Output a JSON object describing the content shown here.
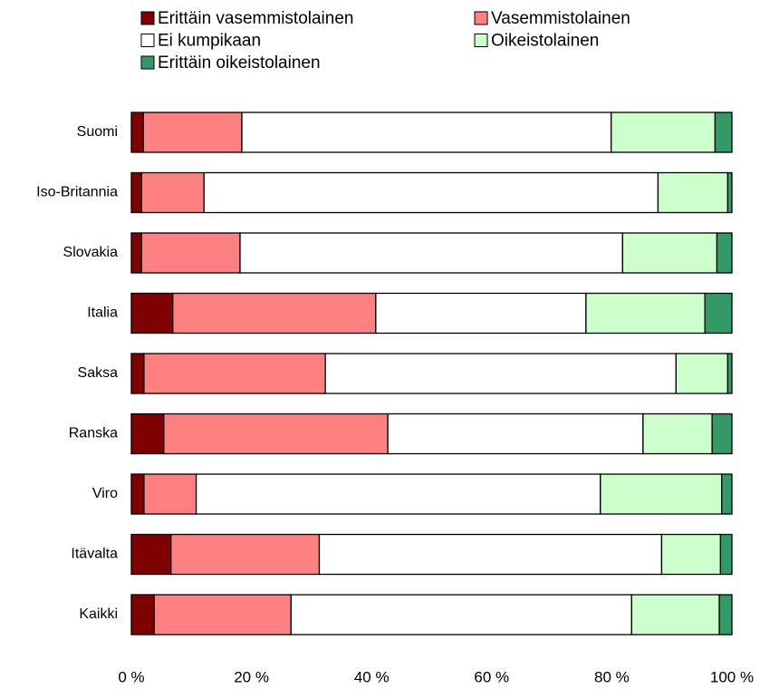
{
  "chart_data": {
    "type": "stacked_barh",
    "categories": [
      "Suomi",
      "Iso-Britannia",
      "Slovakia",
      "Italia",
      "Saksa",
      "Ranska",
      "Viro",
      "Itävalta",
      "Kaikki"
    ],
    "series": [
      {
        "name": "Erittäin vasemmistolainen",
        "color": "#800000",
        "values": [
          2.0,
          1.7,
          1.7,
          6.9,
          2.1,
          5.4,
          2.1,
          6.6,
          3.8
        ]
      },
      {
        "name": "Vasemmistolainen",
        "color": "#ff8080",
        "values": [
          16.4,
          10.4,
          16.4,
          33.8,
          30.2,
          37.3,
          8.7,
          24.7,
          22.8
        ]
      },
      {
        "name": "Ei kumpikaan",
        "color": "#ffffff",
        "values": [
          61.5,
          75.6,
          63.7,
          35.0,
          58.4,
          42.5,
          67.3,
          57.0,
          56.7
        ]
      },
      {
        "name": "Oikeistolainen",
        "color": "#ccffcc",
        "values": [
          17.3,
          11.6,
          15.7,
          19.8,
          8.6,
          11.5,
          20.2,
          9.8,
          14.6
        ]
      },
      {
        "name": "Erittäin oikeistolainen",
        "color": "#339966",
        "values": [
          2.8,
          0.7,
          2.5,
          4.5,
          0.7,
          3.3,
          1.7,
          1.9,
          2.1
        ]
      }
    ],
    "xlim": [
      0,
      100
    ],
    "xticks": [
      {
        "value": 0,
        "label": "0 %"
      },
      {
        "value": 20,
        "label": "20 %"
      },
      {
        "value": 40,
        "label": "40 %"
      },
      {
        "value": 60,
        "label": "60 %"
      },
      {
        "value": 80,
        "label": "80 %"
      },
      {
        "value": 100,
        "label": "100 %"
      }
    ]
  }
}
